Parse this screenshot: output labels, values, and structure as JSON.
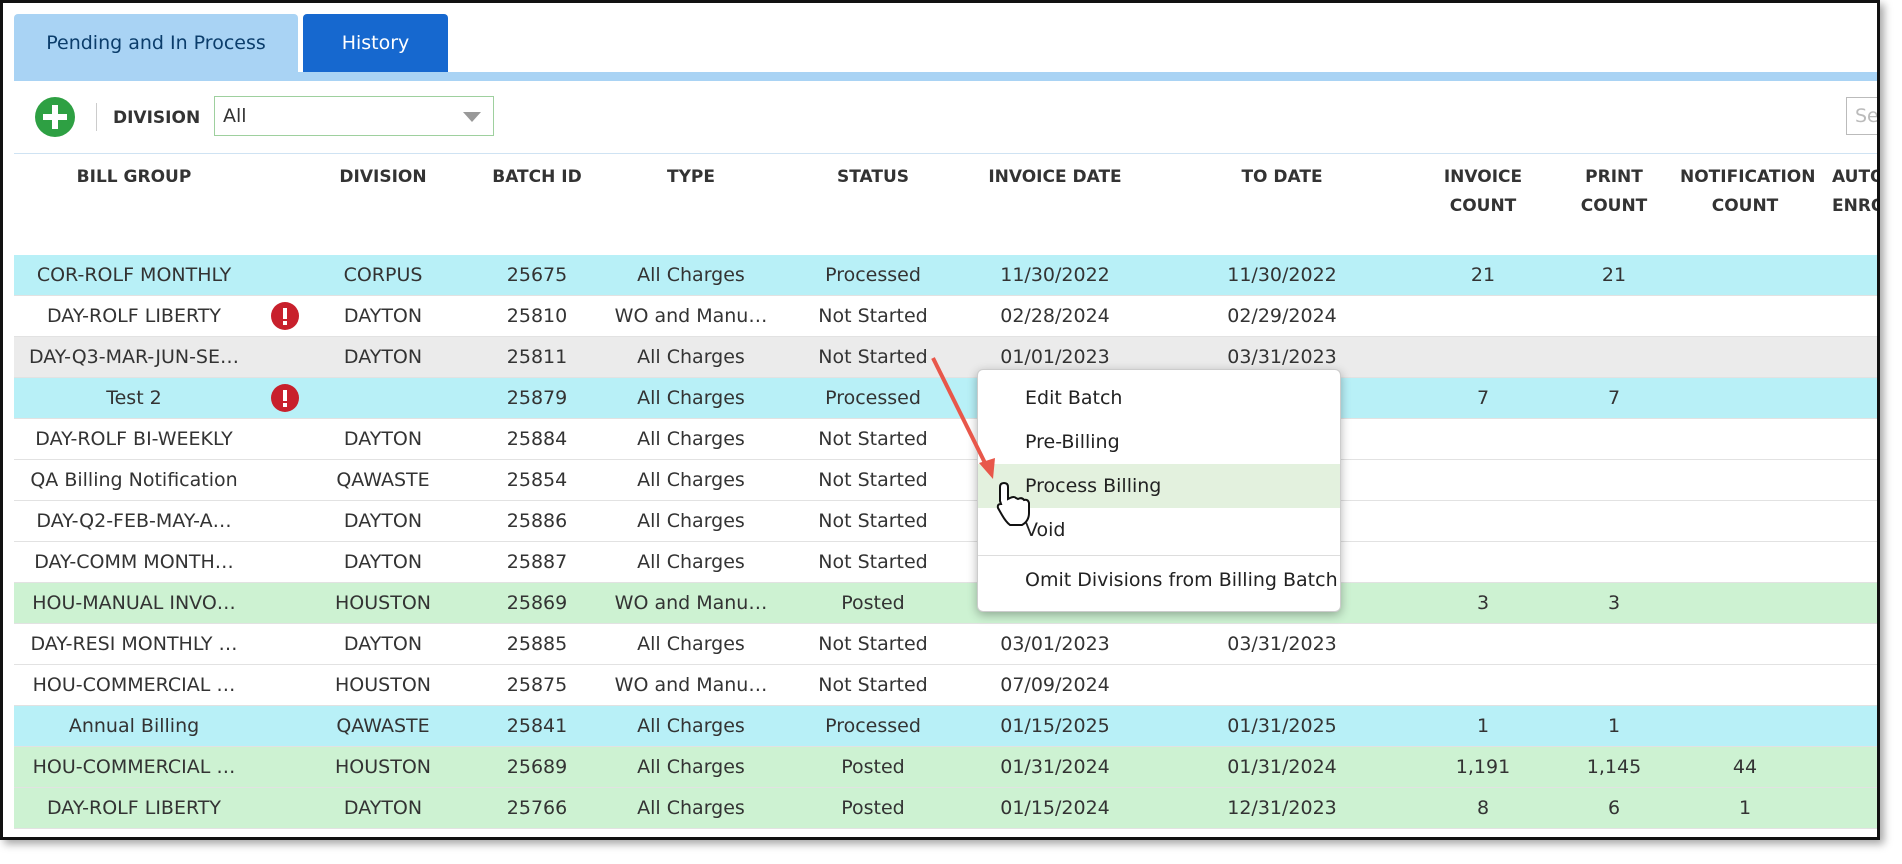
{
  "tabs": [
    "Pending and In Process",
    "History"
  ],
  "toolbar": {
    "division_label": "DIVISION",
    "division_value": "All",
    "search_placeholder": "Sea"
  },
  "table": {
    "columns": [
      "BILL GROUP",
      "DIVISION",
      "BATCH ID",
      "TYPE",
      "STATUS",
      "INVOICE DATE",
      "TO DATE",
      "INVOICE COUNT",
      "PRINT COUNT",
      "NOTIFICATION COUNT",
      "AUTO ENRO"
    ],
    "rows": [
      {
        "color": "#b8f0f7",
        "alert": false,
        "cells": [
          "COR-ROLF MONTHLY",
          "CORPUS",
          "25675",
          "All Charges",
          "Processed",
          "11/30/2022",
          "11/30/2022",
          "21",
          "21",
          null
        ]
      },
      {
        "color": "#ffffff",
        "alert": true,
        "cells": [
          "DAY-ROLF LIBERTY",
          "DAYTON",
          "25810",
          "WO and Manu…",
          "Not Started",
          "02/28/2024",
          "02/29/2024",
          null,
          null,
          null
        ]
      },
      {
        "color": "#ebebeb",
        "alert": false,
        "cells": [
          "DAY-Q3-MAR-JUN-SE…",
          "DAYTON",
          "25811",
          "All Charges",
          "Not Started",
          "01/01/2023",
          "03/31/2023",
          null,
          null,
          null
        ]
      },
      {
        "color": "#b8f0f7",
        "alert": true,
        "cells": [
          "Test 2",
          null,
          "25879",
          "All Charges",
          "Processed",
          null,
          null,
          "7",
          "7",
          null
        ]
      },
      {
        "color": "#ffffff",
        "alert": false,
        "cells": [
          "DAY-ROLF BI-WEEKLY",
          "DAYTON",
          "25884",
          "All Charges",
          "Not Started",
          null,
          null,
          null,
          null,
          null
        ]
      },
      {
        "color": "#ffffff",
        "alert": false,
        "cells": [
          "QA Billing Notification",
          "QAWASTE",
          "25854",
          "All Charges",
          "Not Started",
          null,
          null,
          null,
          null,
          null
        ]
      },
      {
        "color": "#ffffff",
        "alert": false,
        "cells": [
          "DAY-Q2-FEB-MAY-A…",
          "DAYTON",
          "25886",
          "All Charges",
          "Not Started",
          null,
          null,
          null,
          null,
          null
        ]
      },
      {
        "color": "#ffffff",
        "alert": false,
        "cells": [
          "DAY-COMM MONTH…",
          "DAYTON",
          "25887",
          "All Charges",
          "Not Started",
          null,
          null,
          null,
          null,
          null
        ]
      },
      {
        "color": "#cdf2d2",
        "alert": false,
        "cells": [
          "HOU-MANUAL INVO…",
          "HOUSTON",
          "25869",
          "WO and Manu…",
          "Posted",
          null,
          null,
          "3",
          "3",
          null
        ]
      },
      {
        "color": "#ffffff",
        "alert": false,
        "cells": [
          "DAY-RESI MONTHLY …",
          "DAYTON",
          "25885",
          "All Charges",
          "Not Started",
          "03/01/2023",
          "03/31/2023",
          null,
          null,
          null
        ]
      },
      {
        "color": "#ffffff",
        "alert": false,
        "cells": [
          "HOU-COMMERCIAL …",
          "HOUSTON",
          "25875",
          "WO and Manu…",
          "Not Started",
          "07/09/2024",
          null,
          null,
          null,
          null
        ]
      },
      {
        "color": "#b8f0f7",
        "alert": false,
        "cells": [
          "Annual Billing",
          "QAWASTE",
          "25841",
          "All Charges",
          "Processed",
          "01/15/2025",
          "01/31/2025",
          "1",
          "1",
          null
        ]
      },
      {
        "color": "#cdf2d2",
        "alert": false,
        "cells": [
          "HOU-COMMERCIAL …",
          "HOUSTON",
          "25689",
          "All Charges",
          "Posted",
          "01/31/2024",
          "01/31/2024",
          "1,191",
          "1,145",
          "44"
        ]
      },
      {
        "color": "#cdf2d2",
        "alert": false,
        "cells": [
          "DAY-ROLF LIBERTY",
          "DAYTON",
          "25766",
          "All Charges",
          "Posted",
          "01/15/2024",
          "12/31/2023",
          "8",
          "6",
          "1"
        ]
      }
    ]
  },
  "context_menu": {
    "items": [
      "Edit Batch",
      "Pre-Billing",
      "Process Billing",
      "Void",
      "Omit Divisions from Billing Batch"
    ],
    "highlighted": 2
  }
}
